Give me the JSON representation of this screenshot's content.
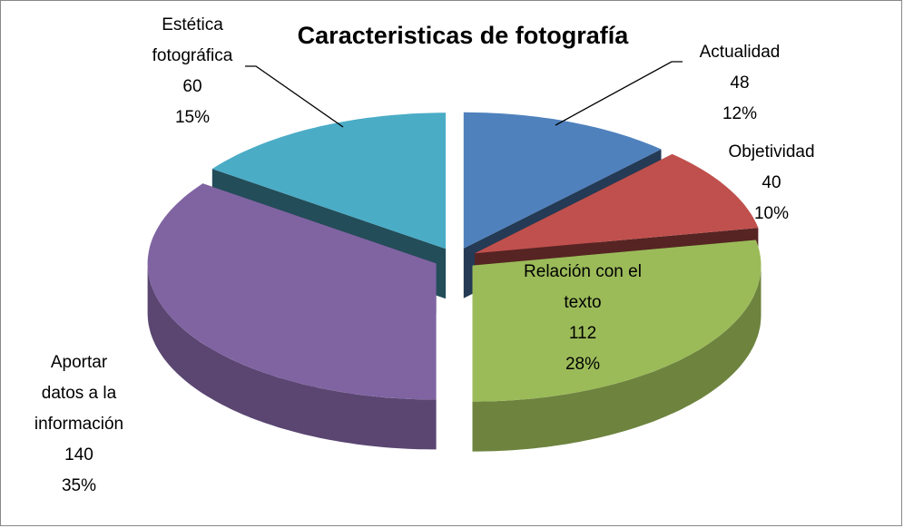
{
  "chart_data": {
    "type": "pie3d",
    "title": "Caracteristicas de fotografía",
    "categories": [
      "Actualidad",
      "Objetividad",
      "Relación con el texto",
      "Aportar datos a la información",
      "Estética fotográfica"
    ],
    "values": [
      48,
      40,
      112,
      140,
      60
    ],
    "percent_labels": [
      "12%",
      "10%",
      "28%",
      "35%",
      "15%"
    ],
    "colors": [
      "#4f81bd",
      "#c0504d",
      "#9bbb59",
      "#8064a2",
      "#4bacc6"
    ]
  }
}
